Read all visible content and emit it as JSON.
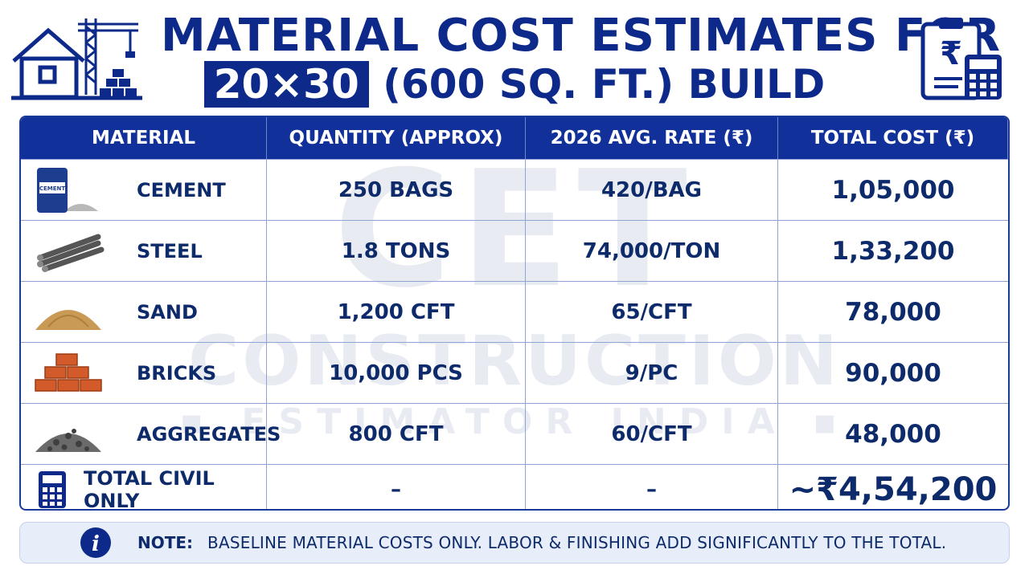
{
  "watermark": {
    "line1": "CET",
    "line2": "CONSTRUCTION",
    "line3": "▪ ESTIMATOR INDIA ▪"
  },
  "header": {
    "title_line1": "MATERIAL COST ESTIMATES FOR",
    "title_highlight": "20×30",
    "title_line2_rest": " (600 SQ. FT.) BUILD"
  },
  "icons": {
    "left_logo": "house-crane-icon",
    "right_logo": "rupee-clipboard-calculator-icon",
    "note": "info-icon"
  },
  "table": {
    "headers": [
      "MATERIAL",
      "QUANTITY (APPROX)",
      "2026 AVG. RATE (₹)",
      "TOTAL COST (₹)"
    ],
    "rows": [
      {
        "material": "CEMENT",
        "quantity": "250 BAGS",
        "rate": "420/BAG",
        "total": "1,05,000",
        "icon": "cement-bag-icon",
        "bag_label": "CEMENT"
      },
      {
        "material": "STEEL",
        "quantity": "1.8 TONS",
        "rate": "74,000/TON",
        "total": "1,33,200",
        "icon": "steel-rods-icon"
      },
      {
        "material": "SAND",
        "quantity": "1,200 CFT",
        "rate": "65/CFT",
        "total": "78,000",
        "icon": "sand-pile-icon"
      },
      {
        "material": "BRICKS",
        "quantity": "10,000 PCS",
        "rate": "9/PC",
        "total": "90,000",
        "icon": "bricks-icon"
      },
      {
        "material": "AGGREGATES",
        "quantity": "800 CFT",
        "rate": "60/CFT",
        "total": "48,000",
        "icon": "aggregates-pile-icon"
      }
    ],
    "total_row": {
      "label": "TOTAL CIVIL ONLY",
      "quantity": "–",
      "rate": "–",
      "total": "~₹4,54,200",
      "icon": "calculator-icon"
    }
  },
  "note": {
    "label": "NOTE:",
    "text": "BASELINE MATERIAL COSTS ONLY. LABOR & FINISHING ADD SIGNIFICANTLY TO THE TOTAL."
  },
  "colors": {
    "primary": "#0d2a8a",
    "header_bg": "#11309a",
    "note_bg": "#e8eef9"
  }
}
